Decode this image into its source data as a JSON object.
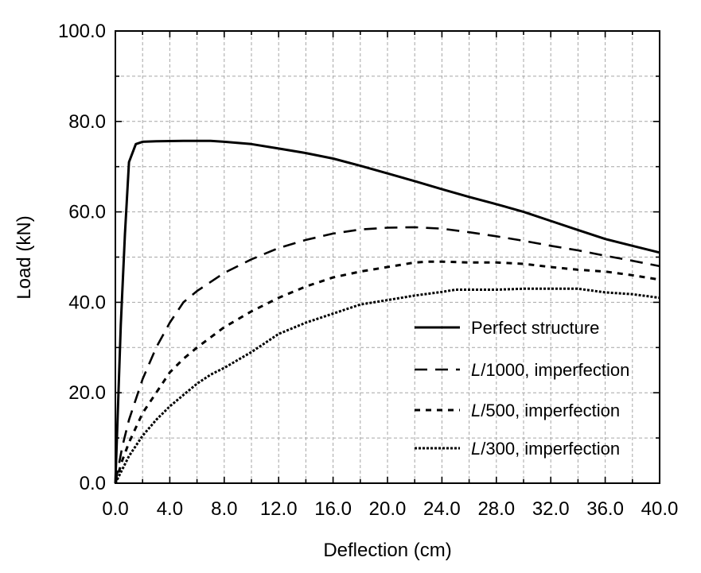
{
  "chart_data": {
    "type": "line",
    "xlabel": "Deflection (cm)",
    "ylabel": "Load (kN)",
    "xlim": [
      0,
      40
    ],
    "ylim": [
      0,
      100
    ],
    "xticks": [
      "0.0",
      "4.0",
      "8.0",
      "12.0",
      "16.0",
      "20.0",
      "24.0",
      "28.0",
      "32.0",
      "36.0",
      "40.0"
    ],
    "yticks": [
      "0.0",
      "20.0",
      "40.0",
      "60.0",
      "80.0",
      "100.0"
    ],
    "grid": true,
    "legend_position": "lower-right",
    "series": [
      {
        "name": "Perfect structure",
        "style": "solid",
        "x": [
          0,
          0.4,
          0.7,
          1.0,
          1.5,
          2.0,
          3.0,
          5.0,
          7.0,
          8.0,
          10.0,
          12.0,
          14.0,
          16.0,
          18.0,
          20.0,
          22.0,
          24.0,
          26.0,
          28.0,
          30.0,
          32.0,
          34.0,
          36.0,
          38.0,
          40.0
        ],
        "y": [
          0,
          35,
          55,
          71,
          75,
          75.5,
          75.6,
          75.7,
          75.7,
          75.5,
          75.0,
          74.0,
          73.0,
          71.8,
          70.2,
          68.5,
          66.8,
          65.0,
          63.3,
          61.7,
          60.0,
          58.0,
          56.0,
          54.0,
          52.5,
          51.0
        ]
      },
      {
        "name": "L/1000, imperfection",
        "name_italic": "L",
        "name_rest": "/1000, imperfection",
        "style": "dash",
        "x": [
          0,
          0.5,
          1.0,
          2.0,
          3.0,
          4.0,
          5.0,
          6.0,
          8.0,
          10.0,
          12.0,
          14.0,
          16.0,
          18.0,
          20.0,
          22.0,
          24.0,
          26.0,
          28.0,
          30.0,
          32.0,
          34.0,
          36.0,
          38.0,
          40.0
        ],
        "y": [
          0,
          8,
          14,
          23,
          30,
          35.5,
          40,
          42.5,
          46.5,
          49.5,
          52,
          53.8,
          55.2,
          56.1,
          56.5,
          56.6,
          56.3,
          55.5,
          54.6,
          53.6,
          52.5,
          51.5,
          50.3,
          49.2,
          48.0
        ]
      },
      {
        "name": "L/500, imperfection",
        "name_italic": "L",
        "name_rest": "/500, imperfection",
        "style": "short-dash",
        "x": [
          0,
          0.5,
          1.0,
          2.0,
          3.0,
          4.0,
          5.0,
          6.0,
          8.0,
          10.0,
          12.0,
          14.0,
          16.0,
          18.0,
          20.0,
          22.0,
          23.0,
          24.0,
          26.0,
          28.0,
          30.0,
          32.0,
          34.0,
          36.0,
          38.0,
          40.0
        ],
        "y": [
          0,
          5,
          9,
          15.5,
          20,
          24.5,
          27.5,
          30,
          34.5,
          38,
          41,
          43.5,
          45.5,
          46.8,
          47.8,
          48.8,
          49,
          49,
          48.8,
          48.8,
          48.5,
          47.8,
          47.2,
          46.8,
          46,
          45
        ]
      },
      {
        "name": "L/300, imperfection",
        "name_italic": "L",
        "name_rest": "/300, imperfection",
        "style": "dotted",
        "x": [
          0,
          0.5,
          1.0,
          2.0,
          3.0,
          4.0,
          5.0,
          6.0,
          7.0,
          8.0,
          10.0,
          12.0,
          14.0,
          16.0,
          18.0,
          20.0,
          22.0,
          24.0,
          25.0,
          26.0,
          28.0,
          30.0,
          32.0,
          34.0,
          36.0,
          38.0,
          40.0
        ],
        "y": [
          0,
          3,
          6,
          10.5,
          14,
          17,
          19.5,
          22,
          24,
          25.5,
          29,
          33,
          35.5,
          37.5,
          39.5,
          40.5,
          41.5,
          42.3,
          42.8,
          42.8,
          42.8,
          43,
          43,
          43,
          42.2,
          41.8,
          41.0
        ]
      }
    ]
  }
}
